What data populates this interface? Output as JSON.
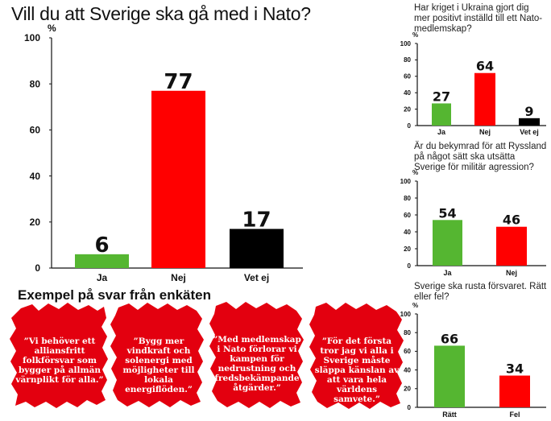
{
  "title": "Vill du att Sverige ska gå med i Nato?",
  "examples_title": "Exempel på svar från enkäten",
  "quotes": [
    "”Vi behöver ett alliansfritt folkförsvar som bygger på allmän värnplikt för alla.”",
    "”Bygg mer vindkraft och solenergi med möjligheter till lokala energiflöden.”",
    "”Med medlemskap i Nato förlorar vi kampen för nedrustning och fredsbekämpande åtgärder.”",
    "”För det första tror jag vi alla i Sverige måste släppa känslan av att vara hela världens samvete.”"
  ],
  "colors": {
    "green": "#55b631",
    "red": "#ff0000",
    "black": "#000000",
    "quote_bg": "#e3000f"
  },
  "chart_data": [
    {
      "type": "bar",
      "title": "Vill du att Sverige ska gå med i Nato?",
      "ylabel": "%",
      "ylim": [
        0,
        100
      ],
      "yticks": [
        0,
        20,
        40,
        60,
        80,
        100
      ],
      "categories": [
        "Ja",
        "Nej",
        "Vet ej"
      ],
      "values": [
        6,
        77,
        17
      ],
      "value_labels": [
        "6",
        "77",
        "17"
      ],
      "bar_colors": [
        "#55b631",
        "#ff0000",
        "#000000"
      ],
      "grid": false
    },
    {
      "type": "bar",
      "title": "Har kriget i Ukraina gjort dig mer positivt inställd till ett Nato-medlemskap?",
      "ylabel": "%",
      "ylim": [
        0,
        100
      ],
      "yticks": [
        0,
        20,
        40,
        60,
        80,
        100
      ],
      "categories": [
        "Ja",
        "Nej",
        "Vet ej"
      ],
      "values": [
        27,
        64,
        9
      ],
      "value_labels": [
        "27",
        "64",
        "9"
      ],
      "bar_colors": [
        "#55b631",
        "#ff0000",
        "#000000"
      ],
      "grid": false
    },
    {
      "type": "bar",
      "title": "Är du bekymrad för att Ryssland på något sätt ska utsätta Sverige för militär agression?",
      "ylabel": "%",
      "ylim": [
        0,
        100
      ],
      "yticks": [
        0,
        20,
        40,
        60,
        80,
        100
      ],
      "categories": [
        "Ja",
        "Nej"
      ],
      "values": [
        54,
        46
      ],
      "value_labels": [
        "54",
        "46"
      ],
      "bar_colors": [
        "#55b631",
        "#ff0000"
      ],
      "grid": false
    },
    {
      "type": "bar",
      "title": "Sverige ska rusta försvaret. Rätt eller fel?",
      "ylabel": "%",
      "ylim": [
        0,
        100
      ],
      "yticks": [
        0,
        20,
        40,
        60,
        80,
        100
      ],
      "categories": [
        "Rätt",
        "Fel"
      ],
      "values": [
        66,
        34
      ],
      "value_labels": [
        "66",
        "34"
      ],
      "bar_colors": [
        "#55b631",
        "#ff0000"
      ],
      "grid": false
    }
  ]
}
